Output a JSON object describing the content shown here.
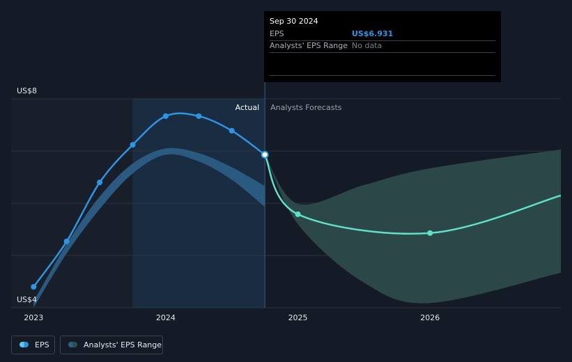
{
  "chart_data": {
    "type": "line",
    "y_axis": {
      "min": 4,
      "max": 8,
      "tick_labels": [
        "US$8",
        "US$4"
      ]
    },
    "x_axis": {
      "min": 2022.83,
      "max": 2026.99,
      "tick_labels": [
        "2023",
        "2024",
        "2025",
        "2026"
      ]
    },
    "section_labels": {
      "actual": "Actual",
      "forecast": "Analysts Forecasts"
    },
    "divider_x": 2024.75,
    "shaded_past_from": 2023.75,
    "series": [
      {
        "name": "EPS",
        "color": "#2f95e3",
        "points": [
          {
            "x": 2023.0,
            "y": 4.4
          },
          {
            "x": 2023.25,
            "y": 5.27
          },
          {
            "x": 2023.5,
            "y": 6.4
          },
          {
            "x": 2023.75,
            "y": 7.12
          },
          {
            "x": 2024.0,
            "y": 7.67
          },
          {
            "x": 2024.25,
            "y": 7.67
          },
          {
            "x": 2024.5,
            "y": 7.39
          },
          {
            "x": 2024.75,
            "y": 6.93
          }
        ]
      },
      {
        "name": "EPS forecast",
        "color": "#5fe0c8",
        "points": [
          {
            "x": 2024.75,
            "y": 6.93
          },
          {
            "x": 2025.0,
            "y": 5.79
          },
          {
            "x": 2026.0,
            "y": 5.43
          },
          {
            "x": 2026.99,
            "y": 6.15
          }
        ]
      },
      {
        "name": "Analysts' EPS Range (past)",
        "color": "#2d5f88",
        "upper": [
          {
            "x": 2023.0,
            "y": 4.12
          },
          {
            "x": 2023.25,
            "y": 5.22
          },
          {
            "x": 2023.5,
            "y": 6.13
          },
          {
            "x": 2023.75,
            "y": 6.76
          },
          {
            "x": 2024.0,
            "y": 7.05
          },
          {
            "x": 2024.25,
            "y": 6.96
          },
          {
            "x": 2024.5,
            "y": 6.69
          },
          {
            "x": 2024.75,
            "y": 6.33
          }
        ],
        "lower": [
          {
            "x": 2023.0,
            "y": 4.0
          },
          {
            "x": 2023.25,
            "y": 5.04
          },
          {
            "x": 2023.5,
            "y": 5.89
          },
          {
            "x": 2023.75,
            "y": 6.57
          },
          {
            "x": 2024.0,
            "y": 6.93
          },
          {
            "x": 2024.25,
            "y": 6.8
          },
          {
            "x": 2024.5,
            "y": 6.45
          },
          {
            "x": 2024.75,
            "y": 5.93
          }
        ]
      },
      {
        "name": "Analysts' EPS Range (forecast)",
        "color": "#2f4f4f",
        "upper": [
          {
            "x": 2024.75,
            "y": 6.93
          },
          {
            "x": 2025.0,
            "y": 5.99
          },
          {
            "x": 2025.5,
            "y": 6.35
          },
          {
            "x": 2026.0,
            "y": 6.67
          },
          {
            "x": 2026.99,
            "y": 7.03
          }
        ],
        "lower": [
          {
            "x": 2024.75,
            "y": 6.93
          },
          {
            "x": 2025.0,
            "y": 5.6
          },
          {
            "x": 2025.5,
            "y": 4.48
          },
          {
            "x": 2026.0,
            "y": 4.09
          },
          {
            "x": 2026.99,
            "y": 4.67
          }
        ]
      }
    ],
    "tooltip": {
      "date": "Sep 30 2024",
      "rows": [
        {
          "label": "EPS",
          "value": "US$6.931",
          "value_color": "#2f95e3"
        },
        {
          "label": "Analysts' EPS Range",
          "value": "No data",
          "value_color": "#7a808a"
        }
      ]
    },
    "legend": [
      {
        "label": "EPS",
        "color_a": "#58c7f2",
        "color_b": "#2f8fd6"
      },
      {
        "label": "Analysts' EPS Range",
        "color_a": "#2d5f88",
        "color_b": "#2f4f4f"
      }
    ],
    "grid": true
  }
}
